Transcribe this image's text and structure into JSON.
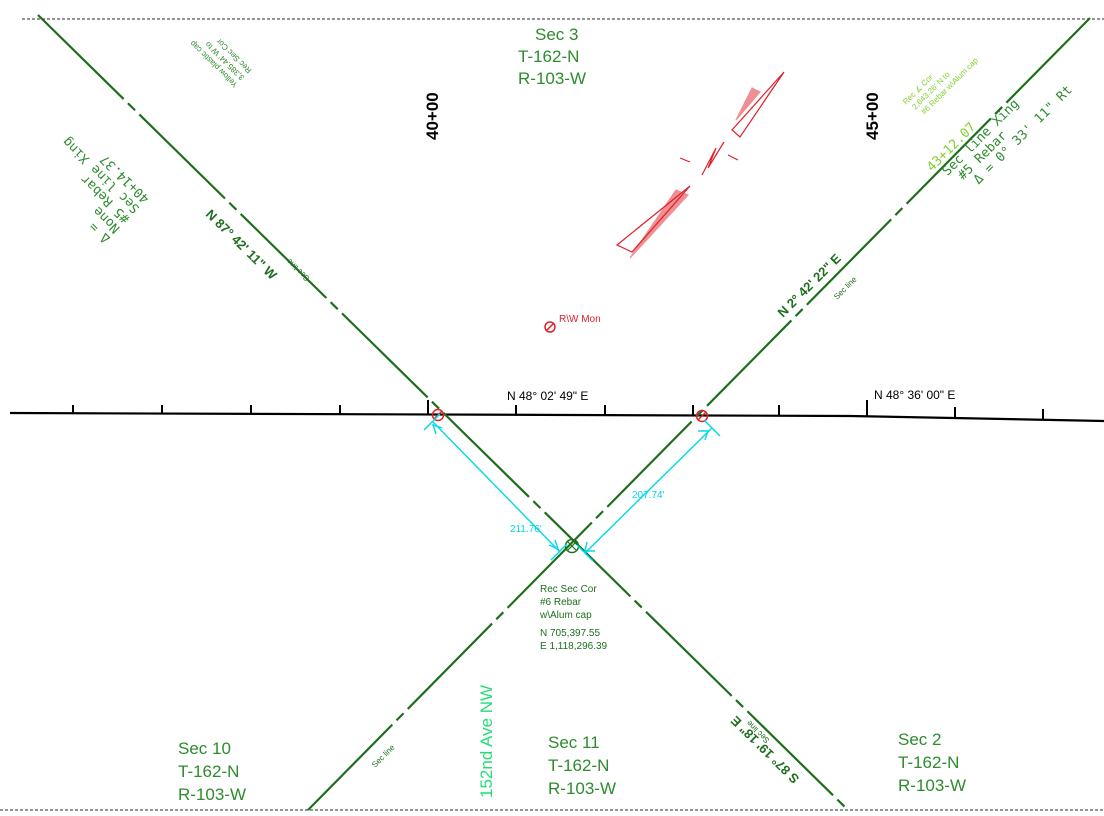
{
  "sections": [
    {
      "sec": "Sec 3",
      "twp": "T-162-N",
      "rng": "R-103-W"
    },
    {
      "sec": "Sec 10",
      "twp": "T-162-N",
      "rng": "R-103-W"
    },
    {
      "sec": "Sec 11",
      "twp": "T-162-N",
      "rng": "R-103-W"
    },
    {
      "sec": "Sec 2",
      "twp": "T-162-N",
      "rng": "R-103-W"
    }
  ],
  "stations": [
    "40+00",
    "45+00"
  ],
  "centerline_bearings": [
    "N 48° 02' 49\" E",
    "N 48° 36' 00\" E"
  ],
  "section_line_bearings": [
    "N 87° 42' 11\" W",
    "N 2° 42' 22\" E",
    "S 87° 19' 18\" E"
  ],
  "sec_line_label": "Sec line",
  "crossing_left": {
    "lines": [
      "40+14.37",
      "Sec line Xing",
      "#5 Rebar",
      "None",
      "Δ ="
    ]
  },
  "crossing_left_note": {
    "lines": [
      "Rec Sec Cor",
      "3,385.44' W to",
      "Yellow plastic cap"
    ]
  },
  "crossing_right": {
    "lines": [
      "43+12.07",
      "Sec line Xing",
      "#5 Rebar",
      "Δ = 0° 33' 11\" Rt"
    ]
  },
  "crossing_right_note": {
    "lines": [
      "Rec ∡ Cor",
      "2,643.26' N to",
      "#6 Rebar w\\Alum cap"
    ]
  },
  "monument_label": "R\\W Mon",
  "dimensions": [
    "211.76'",
    "207.74'"
  ],
  "corner_note": {
    "lines": [
      "Rec Sec Cor",
      "#6 Rebar",
      "w\\Alum cap"
    ]
  },
  "corner_coords": {
    "lines": [
      "N 705,397.55",
      "E 1,118,296.39"
    ]
  },
  "road_name": "152nd Ave NW",
  "colors": {
    "section_line": "#1e6e1e",
    "label_green": "#2e8b2e",
    "light_green": "#7fd32a",
    "red": "#e0202a",
    "cyan": "#00d8e8",
    "black": "#000000",
    "road_label": "#22dd77"
  }
}
